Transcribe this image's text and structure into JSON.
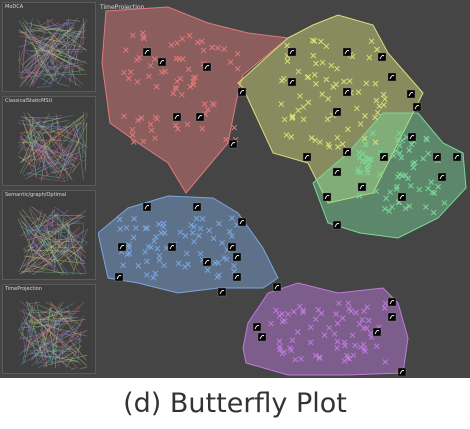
{
  "app": {
    "background": "#454545"
  },
  "thumbnails": [
    {
      "label": "MoDCA",
      "name": "thumb-mdca"
    },
    {
      "label": "ClassicalStaticMSU",
      "name": "thumb-classical"
    },
    {
      "label": "Semantic/graph/Optimal",
      "name": "thumb-semantic"
    },
    {
      "label": "TimeProjection",
      "name": "thumb-timeprojection"
    }
  ],
  "main": {
    "label": "TimeProjection"
  },
  "clusters": [
    {
      "name": "cluster-red",
      "color": "#e07a7a"
    },
    {
      "name": "cluster-yellow",
      "color": "#d8e07a"
    },
    {
      "name": "cluster-green",
      "color": "#7ad89a"
    },
    {
      "name": "cluster-blue",
      "color": "#7aa6e0"
    },
    {
      "name": "cluster-purple",
      "color": "#c07ae0"
    }
  ],
  "caption": "(d) Butterfly Plot"
}
